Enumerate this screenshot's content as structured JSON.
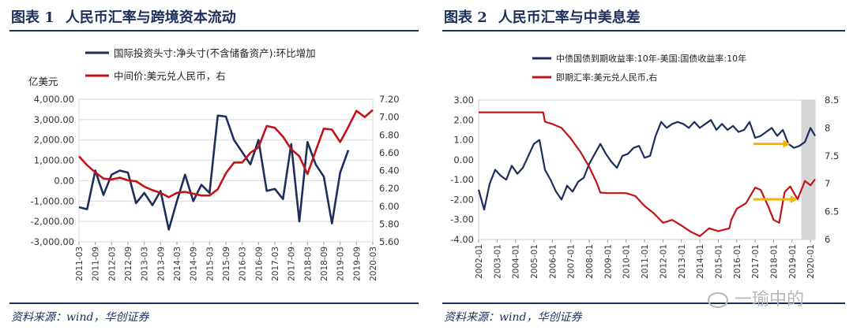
{
  "panels": [
    {
      "title_label": "图表 1",
      "title_text": "人民币汇率与跨境资本流动",
      "source": "资料来源：wind，华创证券"
    },
    {
      "title_label": "图表 2",
      "title_text": "人民币汇率与中美息差",
      "source": "资料来源：wind，华创证券",
      "watermark": "一瑜中的"
    }
  ],
  "chart_data": [
    {
      "type": "line",
      "title": "人民币汇率与跨境资本流动",
      "left_unit": "亿美元",
      "x": [
        "2011-03",
        "2011-06",
        "2011-09",
        "2011-12",
        "2012-03",
        "2012-06",
        "2012-09",
        "2012-12",
        "2013-03",
        "2013-06",
        "2013-09",
        "2013-12",
        "2014-03",
        "2014-06",
        "2014-09",
        "2014-12",
        "2015-03",
        "2015-06",
        "2015-09",
        "2015-12",
        "2016-03",
        "2016-06",
        "2016-09",
        "2016-12",
        "2017-03",
        "2017-06",
        "2017-09",
        "2017-12",
        "2018-03",
        "2018-06",
        "2018-09",
        "2018-12",
        "2019-03",
        "2019-06",
        "2019-09",
        "2019-12",
        "2020-03"
      ],
      "xtick_labels": [
        "2011-03",
        "2011-09",
        "2012-03",
        "2012-09",
        "2013-03",
        "2013-09",
        "2014-03",
        "2014-09",
        "2015-03",
        "2015-09",
        "2016-03",
        "2016-09",
        "2017-03",
        "2017-09",
        "2018-03",
        "2018-09",
        "2019-03",
        "2019-09",
        "2020-03"
      ],
      "left_axis": {
        "ylim": [
          -3000,
          4000
        ],
        "ticks": [
          "-3,000.00",
          "-2,000.00",
          "-1,000.00",
          "0.00",
          "1,000.00",
          "2,000.00",
          "3,000.00",
          "4,000.00"
        ],
        "tick_values": [
          -3000,
          -2000,
          -1000,
          0,
          1000,
          2000,
          3000,
          4000
        ]
      },
      "right_axis": {
        "ylim": [
          5.6,
          7.2
        ],
        "ticks": [
          "5.60",
          "5.80",
          "6.00",
          "6.20",
          "6.40",
          "6.60",
          "6.80",
          "7.00",
          "7.20"
        ],
        "tick_values": [
          5.6,
          5.8,
          6.0,
          6.2,
          6.4,
          6.6,
          6.8,
          7.0,
          7.2
        ]
      },
      "series": [
        {
          "name": "国际投资头寸:净头寸(不含储备资产):环比增加",
          "axis": "left",
          "color": "#1c2f5a",
          "values": [
            -1300,
            -1400,
            500,
            -700,
            300,
            500,
            400,
            -1100,
            -600,
            -1200,
            -500,
            -2400,
            -1000,
            300,
            -1000,
            -200,
            -600,
            3200,
            3150,
            2000,
            1400,
            800,
            2000,
            -500,
            -400,
            -900,
            1800,
            -2000,
            1900,
            800,
            200,
            -2100,
            400,
            1500,
            null,
            null,
            null
          ]
        },
        {
          "name": "中间价:美元兑人民币，右",
          "axis": "right",
          "color": "#c0141a",
          "values": [
            6.56,
            6.46,
            6.38,
            6.31,
            6.3,
            6.32,
            6.29,
            6.28,
            6.22,
            6.18,
            6.15,
            6.1,
            6.15,
            6.16,
            6.14,
            6.12,
            6.12,
            6.19,
            6.37,
            6.49,
            6.49,
            6.6,
            6.66,
            6.9,
            6.88,
            6.78,
            6.64,
            6.56,
            6.36,
            6.62,
            6.87,
            6.86,
            6.72,
            6.89,
            7.07,
            7.0,
            7.08
          ]
        }
      ]
    },
    {
      "type": "line",
      "title": "人民币汇率与中美息差",
      "xtick_labels": [
        "2002-01",
        "2003-01",
        "2004-01",
        "2005-01",
        "2006-01",
        "2007-01",
        "2008-01",
        "2009-01",
        "2010-01",
        "2011-01",
        "2012-01",
        "2013-01",
        "2014-01",
        "2015-01",
        "2016-01",
        "2017-01",
        "2018-01",
        "2019-01",
        "2020-01"
      ],
      "x_range": [
        2002.0,
        2020.25
      ],
      "left_axis": {
        "ylim": [
          -4,
          3
        ],
        "ticks": [
          "-4.00",
          "-3.00",
          "-2.00",
          "-1.00",
          "0.00",
          "1.00",
          "2.00",
          "3.00"
        ],
        "tick_values": [
          -4,
          -3,
          -2,
          -1,
          0,
          1,
          2,
          3
        ]
      },
      "right_axis": {
        "ylim": [
          6,
          8.5
        ],
        "ticks": [
          "6",
          "6.5",
          "7",
          "7.5",
          "8",
          "8.5"
        ],
        "tick_values": [
          6,
          6.5,
          7,
          7.5,
          8,
          8.5
        ]
      },
      "shaded_x_range": [
        2019.5,
        2020.25
      ],
      "series": [
        {
          "name": "中债国债到期收益率:10年-美国:国债收益率:10年",
          "axis": "left",
          "color": "#1c2f5a",
          "x": [
            2002.0,
            2002.3,
            2002.6,
            2002.9,
            2003.2,
            2003.5,
            2003.8,
            2004.1,
            2004.4,
            2004.7,
            2005.0,
            2005.3,
            2005.6,
            2005.9,
            2006.2,
            2006.5,
            2006.8,
            2007.1,
            2007.4,
            2007.7,
            2008.0,
            2008.3,
            2008.6,
            2008.9,
            2009.2,
            2009.5,
            2009.8,
            2010.1,
            2010.4,
            2010.7,
            2011.0,
            2011.3,
            2011.6,
            2011.9,
            2012.2,
            2012.5,
            2012.8,
            2013.1,
            2013.4,
            2013.7,
            2014.0,
            2014.3,
            2014.6,
            2014.9,
            2015.2,
            2015.5,
            2015.8,
            2016.1,
            2016.4,
            2016.7,
            2017.0,
            2017.3,
            2017.6,
            2017.9,
            2018.2,
            2018.5,
            2018.8,
            2019.1,
            2019.4,
            2019.7,
            2020.0,
            2020.25
          ],
          "values": [
            -1.5,
            -2.5,
            -1.2,
            -0.5,
            -0.8,
            -1.0,
            -0.3,
            -0.7,
            -0.4,
            0.2,
            0.8,
            1.0,
            -0.5,
            -1.0,
            -1.6,
            -2.0,
            -1.3,
            -1.6,
            -1.1,
            -0.9,
            -0.2,
            0.3,
            0.8,
            0.3,
            -0.1,
            -0.4,
            0.2,
            0.3,
            0.6,
            0.7,
            0.1,
            0.2,
            1.2,
            1.9,
            1.6,
            1.8,
            1.9,
            1.8,
            1.6,
            1.9,
            1.6,
            1.8,
            2.0,
            1.5,
            1.8,
            1.5,
            1.7,
            1.4,
            1.5,
            1.9,
            1.1,
            1.2,
            1.4,
            1.6,
            1.2,
            1.5,
            0.8,
            0.6,
            0.7,
            0.9,
            1.6,
            1.2
          ]
        },
        {
          "name": "即期汇率:美元兑人民币,右",
          "axis": "right",
          "color": "#c0141a",
          "x": [
            2002.0,
            2005.5,
            2005.6,
            2006.0,
            2006.5,
            2007.0,
            2007.5,
            2008.0,
            2008.4,
            2008.6,
            2009.0,
            2009.5,
            2010.0,
            2010.5,
            2011.0,
            2011.5,
            2012.0,
            2012.5,
            2013.0,
            2013.5,
            2014.0,
            2014.5,
            2015.0,
            2015.6,
            2015.7,
            2016.0,
            2016.5,
            2017.0,
            2017.3,
            2017.7,
            2018.0,
            2018.3,
            2018.6,
            2018.9,
            2019.3,
            2019.7,
            2020.0,
            2020.25
          ],
          "values": [
            8.28,
            8.28,
            8.11,
            8.07,
            8.0,
            7.81,
            7.58,
            7.3,
            7.02,
            6.84,
            6.83,
            6.83,
            6.83,
            6.78,
            6.6,
            6.47,
            6.3,
            6.35,
            6.25,
            6.14,
            6.06,
            6.2,
            6.15,
            6.2,
            6.35,
            6.55,
            6.65,
            6.93,
            6.89,
            6.6,
            6.35,
            6.3,
            6.85,
            6.95,
            6.72,
            7.05,
            6.97,
            7.08
          ]
        }
      ],
      "annotations": [
        {
          "type": "arrow",
          "color": "#f5b400",
          "axis": "left",
          "x_from": 2016.9,
          "x_to": 2018.9,
          "y": 0.8
        },
        {
          "type": "arrow",
          "color": "#f5b400",
          "axis": "right",
          "x_from": 2016.9,
          "x_to": 2019.3,
          "y": 6.72
        }
      ]
    }
  ]
}
